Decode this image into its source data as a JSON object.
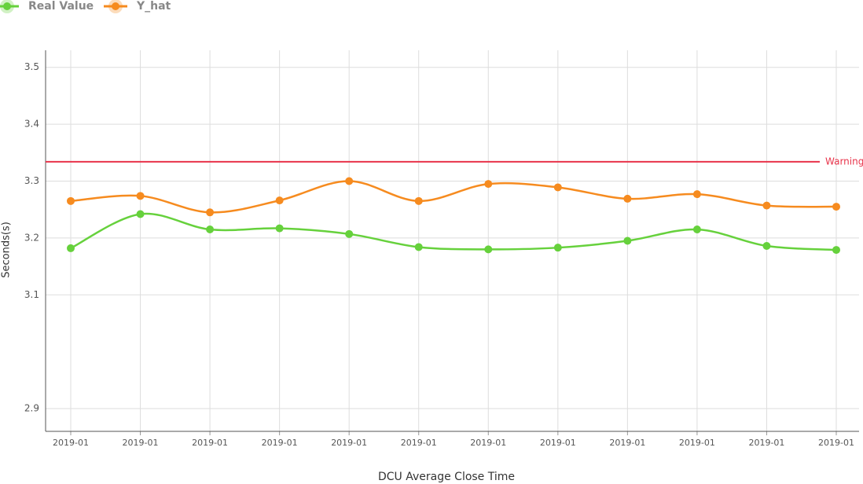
{
  "chart_data": {
    "type": "line",
    "x_label": "DCU Average Close Time",
    "y_label": "Seconds(s)",
    "categories": [
      "2019-01",
      "2019-01",
      "2019-01",
      "2019-01",
      "2019-01",
      "2019-01",
      "2019-01",
      "2019-01",
      "2019-01",
      "2019-01",
      "2019-01",
      "2019-01"
    ],
    "series": [
      {
        "name": "Real Value",
        "color": "#66d13c",
        "values": [
          3.182,
          3.242,
          3.215,
          3.217,
          3.207,
          3.184,
          3.18,
          3.183,
          3.195,
          3.215,
          3.186,
          3.179
        ]
      },
      {
        "name": "Y_hat",
        "color": "#f68b1f",
        "values": [
          3.265,
          3.274,
          3.245,
          3.266,
          3.3,
          3.265,
          3.295,
          3.289,
          3.269,
          3.277,
          3.257,
          3.255
        ]
      }
    ],
    "warning": {
      "label": "Warning",
      "value": 3.334,
      "color": "#e8334a"
    },
    "ylim": [
      2.86,
      3.53
    ],
    "yticks": [
      2.9,
      3.1,
      3.2,
      3.3,
      3.4,
      3.5
    ],
    "grid": true,
    "smooth": true
  }
}
